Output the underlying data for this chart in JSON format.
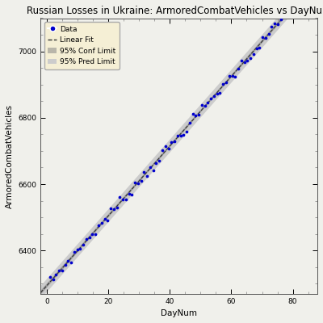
{
  "title": "Russian Losses in Ukraine: ArmoredCombatVehicles vs DayNum",
  "xlabel": "DayNum",
  "ylabel": "ArmoredCombatVehicles",
  "xlim": [
    -2,
    88
  ],
  "ylim": [
    6270,
    7100
  ],
  "yticks": [
    6400,
    6600,
    6800,
    7000
  ],
  "xticks": [
    0,
    20,
    40,
    60,
    80
  ],
  "intercept": 6295.0,
  "slope": 10.5,
  "n_points": 85,
  "noise_std": 8,
  "conf_color": "#888888",
  "pred_color": "#cccccc",
  "data_color": "#0000cc",
  "line_color": "#333333",
  "background_color": "#f0f0eb",
  "legend_bg": "#f5efd5",
  "title_fontsize": 8.5,
  "label_fontsize": 7.5,
  "tick_fontsize": 6.5,
  "legend_fontsize": 6.5
}
